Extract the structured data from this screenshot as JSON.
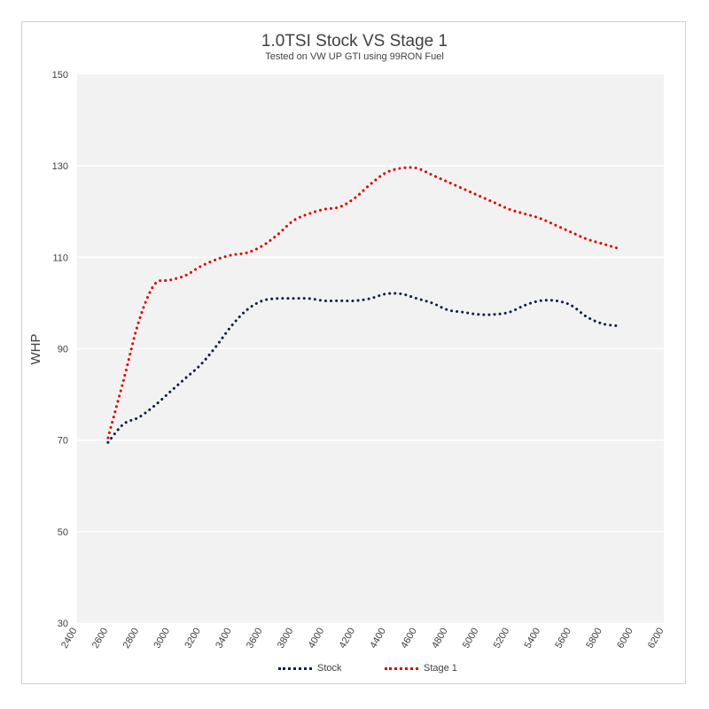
{
  "chart_data": {
    "type": "line",
    "title": "1.0TSI Stock VS Stage 1",
    "subtitle": "Tested on VW UP GTI using 99RON Fuel",
    "xlabel": "",
    "ylabel": "WHP",
    "xlim": [
      2400,
      6200
    ],
    "ylim": [
      30,
      150
    ],
    "xticks": [
      2400,
      2600,
      2800,
      3000,
      3200,
      3400,
      3600,
      3800,
      4000,
      4200,
      4400,
      4600,
      4800,
      5000,
      5200,
      5400,
      5600,
      5800,
      6000,
      6200
    ],
    "yticks": [
      30,
      50,
      70,
      90,
      110,
      130,
      150
    ],
    "grid": "horizontal",
    "legend": "bottom",
    "series": [
      {
        "name": "Stock",
        "color": "#0d1f4a",
        "x": [
          2600,
          2700,
          2800,
          2900,
          3000,
          3100,
          3200,
          3300,
          3400,
          3500,
          3600,
          3700,
          3800,
          3900,
          4000,
          4100,
          4200,
          4300,
          4400,
          4500,
          4600,
          4700,
          4800,
          4900,
          5000,
          5100,
          5200,
          5300,
          5400,
          5500,
          5600,
          5700,
          5800,
          5900
        ],
        "y": [
          69.5,
          73.5,
          75,
          77.5,
          80.5,
          83.5,
          86.5,
          90.5,
          95,
          98.5,
          100.5,
          101,
          101,
          101,
          100.5,
          100.5,
          100.5,
          101,
          102,
          102,
          101,
          100,
          98.5,
          98,
          97.5,
          97.5,
          98,
          99.5,
          100.5,
          100.5,
          99.5,
          97,
          95.5,
          95
        ]
      },
      {
        "name": "Stage 1",
        "color": "#e00000",
        "x": [
          2600,
          2700,
          2800,
          2900,
          3000,
          3100,
          3200,
          3300,
          3400,
          3500,
          3600,
          3700,
          3800,
          3900,
          4000,
          4100,
          4200,
          4300,
          4400,
          4500,
          4600,
          4700,
          4800,
          4900,
          5000,
          5100,
          5200,
          5300,
          5400,
          5500,
          5600,
          5700,
          5800,
          5900
        ],
        "y": [
          70.5,
          83,
          96,
          104,
          105,
          106,
          108,
          109.5,
          110.5,
          111,
          112.5,
          115,
          118,
          119.5,
          120.5,
          121,
          123,
          126,
          128.5,
          129.5,
          129.5,
          128,
          126.5,
          125,
          123.5,
          122,
          120.5,
          119.5,
          118.5,
          117,
          115.5,
          114,
          113,
          112
        ]
      }
    ]
  }
}
